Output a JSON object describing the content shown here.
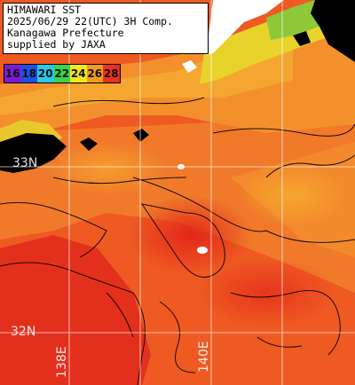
{
  "title": {
    "line1": "HIMAWARI SST",
    "line2": "2025/06/29 22(UTC) 3H Comp.",
    "line3": "Kanagawa Prefecture",
    "line4": "supplied by JAXA"
  },
  "legend": [
    {
      "label": "16",
      "color": "#7a1bd6"
    },
    {
      "label": "18",
      "color": "#1e50e8"
    },
    {
      "label": "20",
      "color": "#28c8e6"
    },
    {
      "label": "22",
      "color": "#3cd24a"
    },
    {
      "label": "24",
      "color": "#f0e61e"
    },
    {
      "label": "26",
      "color": "#f59a1e"
    },
    {
      "label": "28",
      "color": "#e8321e"
    }
  ],
  "grid_labels": {
    "lat_north": "33N",
    "lat_south": "32N",
    "lon_west": "138E",
    "lon_east": "140E"
  },
  "colors": {
    "sea_warm": "#e8481e",
    "sea_hot": "#e62a1a",
    "sea_mid": "#f07a28",
    "sea_cool": "#f5a02a",
    "coast_yellow": "#f2d428",
    "land_white": "#ffffff",
    "cloud_black": "#000000",
    "grid": "#ffffff"
  }
}
